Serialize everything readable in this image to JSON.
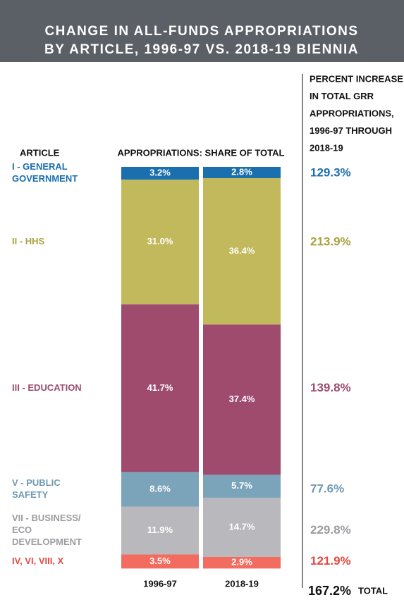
{
  "chart_data": {
    "type": "stacked-bar",
    "title": [
      "CHANGE IN ALL-FUNDS APPROPRIATIONS",
      "BY ARTICLE, 1996-97 VS. 2018-19 BIENNIA"
    ],
    "left_heading": "ARTICLE",
    "center_heading": "APPROPRIATIONS: SHARE OF TOTAL",
    "right_heading": [
      "PERCENT INCREASE",
      "IN TOTAL GRR",
      "APPROPRIATIONS,",
      "1996-97 THROUGH",
      "2018-19"
    ],
    "categories": [
      "1996-97",
      "2018-19"
    ],
    "ylim": [
      0,
      100
    ],
    "series": [
      {
        "name": [
          "I - GENERAL",
          "GOVERNMENT"
        ],
        "color": "#1a6fae",
        "label_color": "#1a6fae",
        "values": [
          3.2,
          2.8
        ],
        "value_labels": [
          "3.2%",
          "2.8%"
        ],
        "increase": 129.3,
        "increase_label": "129.3%"
      },
      {
        "name": [
          "II - HHS"
        ],
        "color": "#c2b95c",
        "label_color": "#aaa23e",
        "values": [
          31.0,
          36.4
        ],
        "value_labels": [
          "31.0%",
          "36.4%"
        ],
        "increase": 213.9,
        "increase_label": "213.9%"
      },
      {
        "name": [
          "III - EDUCATION"
        ],
        "color": "#9e4b6e",
        "label_color": "#9e4b6e",
        "values": [
          41.7,
          37.4
        ],
        "value_labels": [
          "41.7%",
          "37.4%"
        ],
        "increase": 139.8,
        "increase_label": "139.8%"
      },
      {
        "name": [
          "V - PUBLIC",
          "SAFETY"
        ],
        "color": "#7ba4ba",
        "label_color": "#6f9ab0",
        "values": [
          8.6,
          5.7
        ],
        "value_labels": [
          "8.6%",
          "5.7%"
        ],
        "increase": 77.6,
        "increase_label": "77.6%"
      },
      {
        "name": [
          "VII - BUSINESS/",
          "ECO",
          "DEVELOPMENT"
        ],
        "color": "#b9b9bd",
        "label_color": "#9c9ca0",
        "values": [
          11.9,
          14.7
        ],
        "value_labels": [
          "11.9%",
          "14.7%"
        ],
        "increase": 229.8,
        "increase_label": "229.8%"
      },
      {
        "name": [
          "IV, VI, VIII, X"
        ],
        "color": "#f26c60",
        "label_color": "#e5493f",
        "values": [
          3.5,
          2.9
        ],
        "value_labels": [
          "3.5%",
          "2.9%"
        ],
        "increase": 121.9,
        "increase_label": "121.9%"
      }
    ],
    "total": 167.2,
    "total_label": "167.2%",
    "total_text": "TOTAL"
  }
}
